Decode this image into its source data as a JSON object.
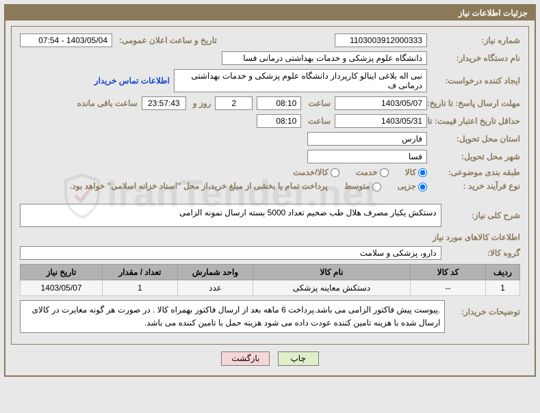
{
  "title": "جزئیات اطلاعات نیاز",
  "labels": {
    "need_no": "شماره نیاز:",
    "announce_dt": "تاریخ و ساعت اعلان عمومی:",
    "buyer_org": "نام دستگاه خریدار:",
    "requester": "ایجاد کننده درخواست:",
    "contact_link": "اطلاعات تماس خریدار",
    "reply_deadline": "مهلت ارسال پاسخ: تا تاریخ:",
    "hour": "ساعت",
    "days_and": "روز و",
    "hours_left": "ساعت باقی مانده",
    "price_valid": "حداقل تاریخ اعتبار قیمت: تا تاریخ:",
    "delivery_prov": "استان محل تحویل:",
    "delivery_city": "شهر محل تحویل:",
    "category": "طبقه بندی موضوعی:",
    "cat_goods": "کالا",
    "cat_service": "خدمت",
    "cat_goods_service": "کالا/خدمت",
    "purchase_type": "نوع فرآیند خرید :",
    "pt_minor": "جزیی",
    "pt_medium": "متوسط",
    "payment_note": "پرداخت تمام یا بخشی از مبلغ خرید،از محل \"اسناد خزانه اسلامی\" خواهد بود.",
    "need_desc": "شرح کلی نیاز:",
    "goods_info": "اطلاعات کالاهای مورد نیاز",
    "goods_group": "گروه کالا:",
    "buyer_notes": "توضیحات خریدار:"
  },
  "fields": {
    "need_no": "1103003912000333",
    "announce_dt": "1403/05/04 - 07:54",
    "buyer_org": "دانشگاه علوم پزشکی و خدمات بهداشتی درمانی فسا",
    "requester": "نبی اله بلاغی اینالو کارپرداز دانشگاه علوم پزشکی و خدمات بهداشتی درمانی ف",
    "reply_date": "1403/05/07",
    "reply_time": "08:10",
    "days_left": "2",
    "time_left": "23:57:43",
    "price_valid_date": "1403/05/31",
    "price_valid_time": "08:10",
    "delivery_prov": "فارس",
    "delivery_city": "فسا",
    "need_desc": "دستکش یکبار مصرف هلال طب ضخیم  تعداد 5000 بسته ارسال نمونه الزامی",
    "goods_group": "دارو، پزشکی و سلامت",
    "buyer_notes": ".پیوست پیش فاکتور الزامی می باشد.پرداخت 6 ماهه بعد از ارسال فاکتور بهمراه کالا . در صورت هر گونه مغایرت در کالای ارسال شده با هزینه تامین کننده  عودت داده می شود  هزینه حمل با تامین  کننده می باشد."
  },
  "radios": {
    "category": "goods",
    "purchase": "minor"
  },
  "table": {
    "headers": {
      "row": "ردیف",
      "code": "کد کالا",
      "name": "نام کالا",
      "unit": "واحد شمارش",
      "qty": "تعداد / مقدار",
      "date": "تاریخ نیاز"
    },
    "rows": [
      {
        "row": "1",
        "code": "--",
        "name": "دستکش معاینه پزشکی",
        "unit": "عدد",
        "qty": "1",
        "date": "1403/05/07"
      }
    ],
    "col_widths": {
      "row": "50px",
      "code": "110px",
      "name": "auto",
      "unit": "110px",
      "qty": "110px",
      "date": "120px"
    }
  },
  "buttons": {
    "print": "چاپ",
    "back": "بازگشت"
  },
  "watermark": "IranTender.net",
  "colors": {
    "frame": "#8a7a5a",
    "header_bg": "#b2b2b2",
    "btn_print": "#dff0c8",
    "btn_back": "#f7d6d6"
  }
}
